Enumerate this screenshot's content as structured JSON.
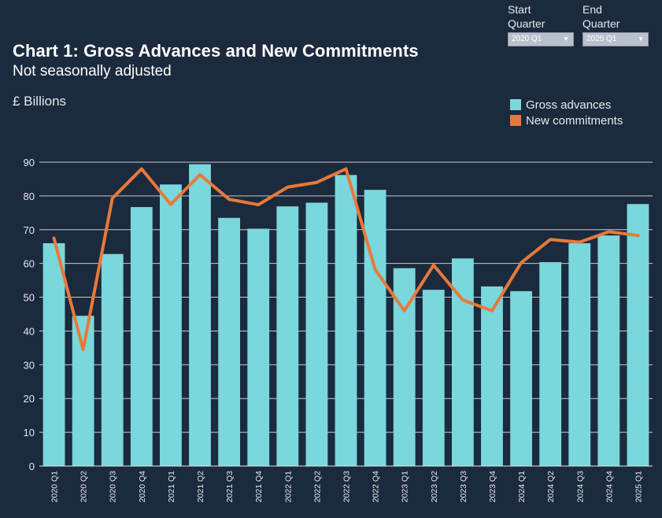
{
  "filters": {
    "start": {
      "label_line1": "Start",
      "label_line2": "Quarter",
      "value": "2020 Q1"
    },
    "end": {
      "label_line1": "End",
      "label_line2": "Quarter",
      "value": "2025 Q1"
    }
  },
  "colors": {
    "background": "#1b2a3d",
    "bars": "#7ad7dc",
    "line": "#e8793a",
    "grid": "#e6e9ee"
  },
  "chart_data": {
    "type": "bar",
    "title": "Chart 1: Gross Advances and New Commitments",
    "subtitle": "Not seasonally adjusted",
    "ylabel": "£ Billions",
    "xlabel": "",
    "ylim": [
      0,
      90
    ],
    "yticks": [
      0,
      10,
      20,
      30,
      40,
      50,
      60,
      70,
      80,
      90
    ],
    "grid": true,
    "legend_position": "top-right",
    "categories": [
      "2020 Q1",
      "2020 Q2",
      "2020 Q3",
      "2020 Q4",
      "2021 Q1",
      "2021 Q2",
      "2021 Q3",
      "2021 Q4",
      "2022 Q1",
      "2022 Q2",
      "2022 Q3",
      "2022 Q4",
      "2023 Q1",
      "2023 Q2",
      "2023 Q3",
      "2023 Q4",
      "2024 Q1",
      "2024 Q2",
      "2024 Q3",
      "2024 Q4",
      "2025 Q1"
    ],
    "series": [
      {
        "name": "Gross advances",
        "type": "bar",
        "values": [
          66,
          44.5,
          62.8,
          76.7,
          83.4,
          89.4,
          73.5,
          70.3,
          76.9,
          78,
          86.2,
          81.8,
          58.6,
          52.2,
          61.5,
          53.2,
          51.8,
          60.4,
          66,
          68.3,
          77.6
        ]
      },
      {
        "name": "New commitments",
        "type": "line",
        "values": [
          67.5,
          34.5,
          79.3,
          88,
          77.5,
          86.3,
          79,
          77.4,
          82.6,
          84,
          88,
          58.2,
          46,
          59.5,
          49.2,
          46,
          60.2,
          67.1,
          66.3,
          69.4,
          68.3
        ]
      }
    ]
  }
}
